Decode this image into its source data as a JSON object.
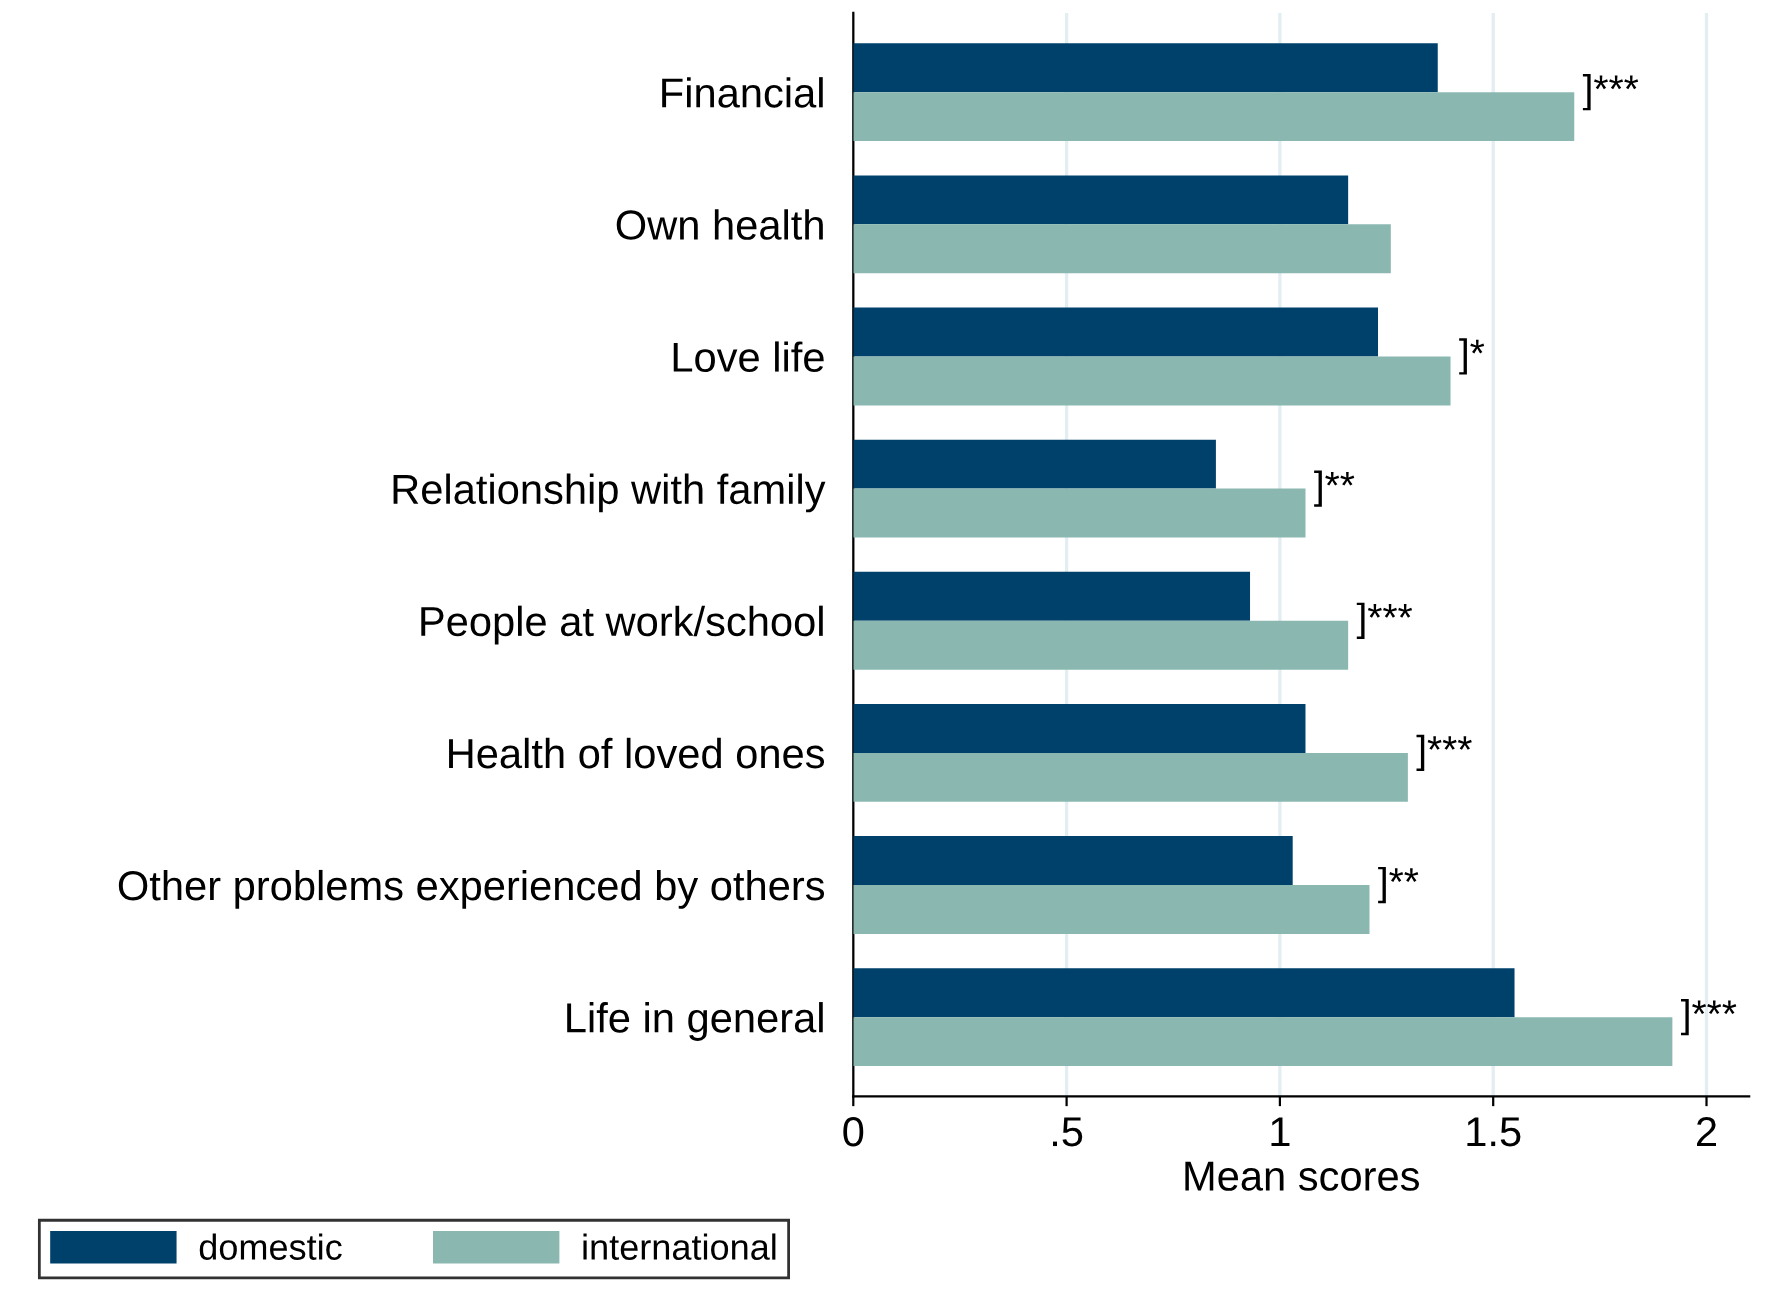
{
  "chart_data": {
    "type": "bar",
    "orientation": "horizontal",
    "xlabel": "Mean scores",
    "categories": [
      "Financial",
      "Own health",
      "Love life",
      "Relationship with family",
      "People at work/school",
      "Health of loved ones",
      "Other problems experienced by others",
      "Life in general"
    ],
    "series": [
      {
        "name": "domestic",
        "color": "#00416b",
        "values": [
          1.37,
          1.16,
          1.23,
          0.85,
          0.93,
          1.06,
          1.03,
          1.55
        ]
      },
      {
        "name": "international",
        "color": "#8ab8b0",
        "values": [
          1.69,
          1.26,
          1.4,
          1.06,
          1.16,
          1.3,
          1.21,
          1.92
        ]
      }
    ],
    "xlim": [
      0,
      2.1
    ],
    "xticks": [
      0,
      {
        "value": 0.5,
        "label": ".5"
      },
      1,
      1.5,
      2
    ],
    "grid": "x",
    "legend": "bottom left",
    "annotations": [
      {
        "text": "]***",
        "x": 1.69,
        "y": "Financial"
      },
      {
        "text": "]*",
        "x": 1.4,
        "y": "Love life"
      },
      {
        "text": "]**",
        "x": 1.06,
        "y": "Relationship with family"
      },
      {
        "text": "]***",
        "x": 1.16,
        "y": "People at work/school"
      },
      {
        "text": "]***",
        "x": 1.3,
        "y": "Health of loved ones"
      },
      {
        "text": "]**",
        "x": 1.21,
        "y": "Other problems experienced by others"
      },
      {
        "text": "]***",
        "x": 1.92,
        "y": "Life in general"
      }
    ]
  }
}
